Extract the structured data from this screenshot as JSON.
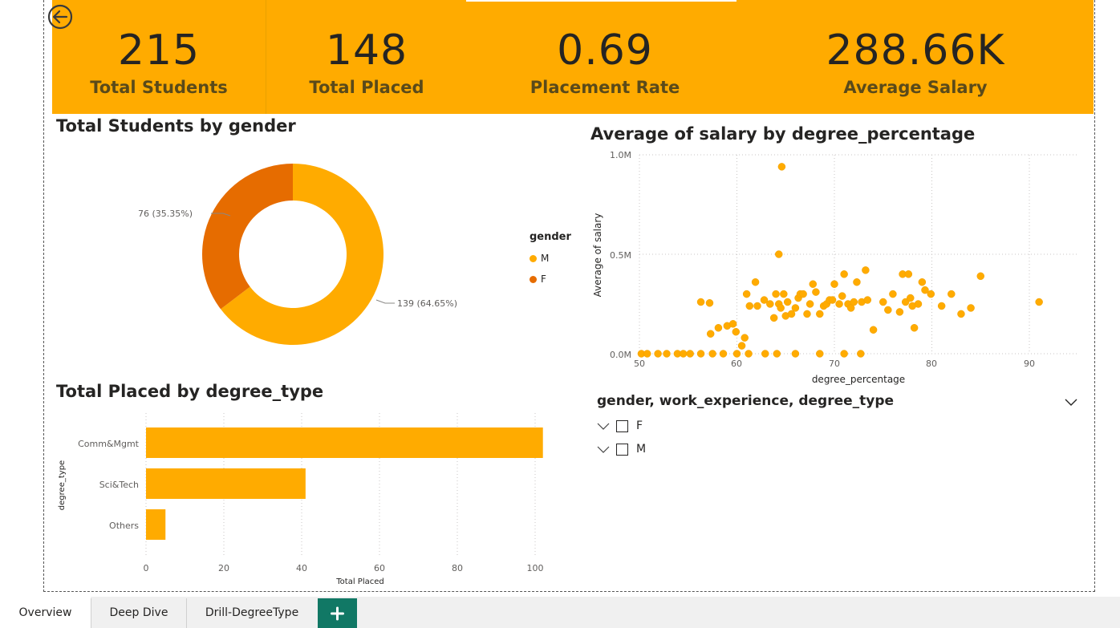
{
  "kpis": [
    {
      "value": "215",
      "label": "Total Students"
    },
    {
      "value": "148",
      "label": "Total Placed"
    },
    {
      "value": "0.69",
      "label": "Placement Rate"
    },
    {
      "value": "288.66K",
      "label": "Average Salary"
    }
  ],
  "colors": {
    "accent": "#ffab00",
    "secondary": "#e66c00",
    "tab_add": "#117865"
  },
  "back_button_icon": "back-arrow-icon",
  "donut": {
    "title": "Total Students by gender",
    "legend_title": "gender",
    "legend": [
      "M",
      "F"
    ],
    "label_f": "76 (35.35%)",
    "label_m": "139 (64.65%)"
  },
  "bar": {
    "title": "Total Placed by degree_type",
    "ylabel": "degree_type",
    "xlabel": "Total Placed",
    "categories": [
      "Comm&Mgmt",
      "Sci&Tech",
      "Others"
    ],
    "ticks": [
      "0",
      "20",
      "40",
      "60",
      "80",
      "100"
    ]
  },
  "scatter": {
    "title": "Average of salary by degree_percentage",
    "ylabel": "Average of salary",
    "xlabel": "degree_percentage",
    "yticks": [
      "1.0M",
      "0.5M",
      "0.0M"
    ],
    "xticks": [
      "50",
      "60",
      "70",
      "80",
      "90"
    ]
  },
  "slicer": {
    "title": "gender, work_experience, degree_type",
    "items": [
      "F",
      "M"
    ]
  },
  "tabs": [
    "Overview",
    "Deep Dive",
    "Drill-DegreeType"
  ],
  "add_tab_icon": "plus-icon",
  "chart_data": [
    {
      "type": "pie",
      "title": "Total Students by gender",
      "legend_title": "gender",
      "legend_placement": "right",
      "categories": [
        "M",
        "F"
      ],
      "values": [
        139,
        76
      ],
      "colors": [
        "#ffab00",
        "#e66c00"
      ],
      "data_labels": [
        "139 (64.65%)",
        "76 (35.35%)"
      ]
    },
    {
      "type": "bar",
      "orientation": "horizontal",
      "title": "Total Placed by degree_type",
      "xlabel": "Total Placed",
      "ylabel": "degree_type",
      "categories": [
        "Comm&Mgmt",
        "Sci&Tech",
        "Others"
      ],
      "values": [
        102,
        41,
        5
      ],
      "xlim": [
        0,
        105
      ],
      "grid": true
    },
    {
      "type": "scatter",
      "title": "Average of salary by degree_percentage",
      "xlabel": "degree_percentage",
      "ylabel": "Average of salary",
      "xlim": [
        50,
        95
      ],
      "ylim": [
        0,
        1000000
      ],
      "grid": true,
      "points": [
        [
          50.2,
          0
        ],
        [
          50.8,
          0
        ],
        [
          51.9,
          0
        ],
        [
          52.8,
          0
        ],
        [
          53.9,
          0
        ],
        [
          54.5,
          0
        ],
        [
          55.2,
          0
        ],
        [
          56.3,
          0
        ],
        [
          57.5,
          0
        ],
        [
          58.6,
          0
        ],
        [
          60,
          0
        ],
        [
          61.2,
          0
        ],
        [
          62.9,
          0
        ],
        [
          64.1,
          0
        ],
        [
          66,
          0
        ],
        [
          68.5,
          0
        ],
        [
          71,
          0
        ],
        [
          72.7,
          0
        ],
        [
          64.6,
          940000
        ],
        [
          64.3,
          500000
        ],
        [
          56.3,
          260000
        ],
        [
          57.2,
          255000
        ],
        [
          57.3,
          100000
        ],
        [
          58.1,
          130000
        ],
        [
          59,
          140000
        ],
        [
          59.6,
          150000
        ],
        [
          59.9,
          110000
        ],
        [
          60.5,
          40000
        ],
        [
          60.8,
          80000
        ],
        [
          61,
          300000
        ],
        [
          61.3,
          240000
        ],
        [
          61.9,
          360000
        ],
        [
          62.1,
          240000
        ],
        [
          62.8,
          270000
        ],
        [
          63.4,
          250000
        ],
        [
          63.8,
          180000
        ],
        [
          64,
          300000
        ],
        [
          64.3,
          250000
        ],
        [
          64.5,
          230000
        ],
        [
          64.8,
          300000
        ],
        [
          65,
          190000
        ],
        [
          65.2,
          260000
        ],
        [
          65.6,
          200000
        ],
        [
          66,
          230000
        ],
        [
          66.3,
          280000
        ],
        [
          66.5,
          300000
        ],
        [
          66.8,
          300000
        ],
        [
          67.2,
          200000
        ],
        [
          67.5,
          250000
        ],
        [
          67.8,
          350000
        ],
        [
          68.1,
          310000
        ],
        [
          68.5,
          200000
        ],
        [
          68.9,
          240000
        ],
        [
          69.2,
          250000
        ],
        [
          69.5,
          270000
        ],
        [
          69.8,
          270000
        ],
        [
          70,
          350000
        ],
        [
          70.5,
          250000
        ],
        [
          70.8,
          290000
        ],
        [
          71,
          400000
        ],
        [
          71.4,
          250000
        ],
        [
          71.7,
          230000
        ],
        [
          72,
          260000
        ],
        [
          72.3,
          360000
        ],
        [
          72.8,
          260000
        ],
        [
          73.2,
          420000
        ],
        [
          73.4,
          270000
        ],
        [
          74,
          120000
        ],
        [
          75,
          260000
        ],
        [
          75.5,
          220000
        ],
        [
          76,
          300000
        ],
        [
          76.7,
          210000
        ],
        [
          77,
          400000
        ],
        [
          77.3,
          260000
        ],
        [
          77.6,
          400000
        ],
        [
          77.8,
          280000
        ],
        [
          78,
          240000
        ],
        [
          78.2,
          130000
        ],
        [
          78.6,
          250000
        ],
        [
          79,
          360000
        ],
        [
          79.3,
          320000
        ],
        [
          79.9,
          300000
        ],
        [
          81,
          240000
        ],
        [
          82,
          300000
        ],
        [
          83,
          200000
        ],
        [
          84,
          230000
        ],
        [
          85,
          390000
        ],
        [
          91,
          260000
        ]
      ]
    }
  ]
}
